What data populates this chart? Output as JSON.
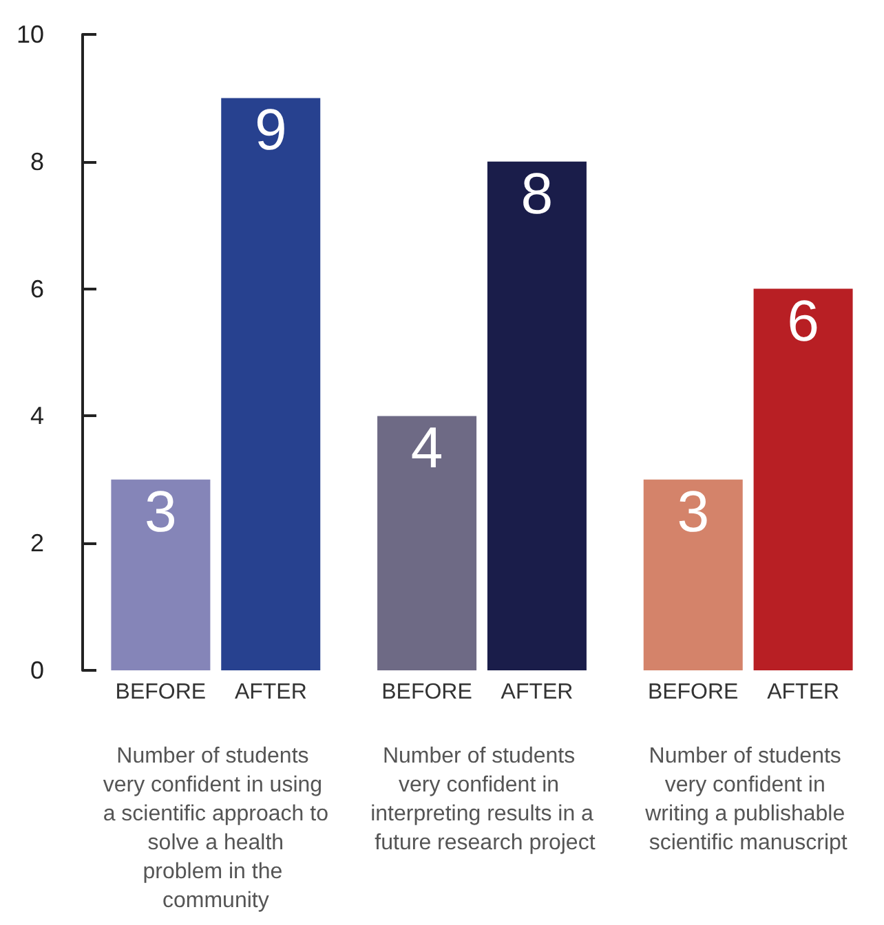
{
  "chart_data": {
    "type": "bar",
    "categories": [
      "Number of students very confident in using a scientific approach to solve a health problem in the community",
      "Number of students very confident in interpreting results in a future research project",
      "Number of students very confident in writing a publishable scientific manuscript"
    ],
    "series": [
      {
        "name": "BEFORE",
        "colors": [
          "#8585b8",
          "#6e6a85",
          "#d4836a"
        ],
        "values": [
          3,
          4,
          3
        ]
      },
      {
        "name": "AFTER",
        "colors": [
          "#27418f",
          "#1a1d4a",
          "#b81f24"
        ],
        "values": [
          9,
          8,
          6
        ]
      }
    ],
    "ylim": [
      0,
      10
    ],
    "yticks": [
      0,
      2,
      4,
      6,
      8,
      10
    ],
    "grid": false,
    "legend": false,
    "data_labels": true
  }
}
